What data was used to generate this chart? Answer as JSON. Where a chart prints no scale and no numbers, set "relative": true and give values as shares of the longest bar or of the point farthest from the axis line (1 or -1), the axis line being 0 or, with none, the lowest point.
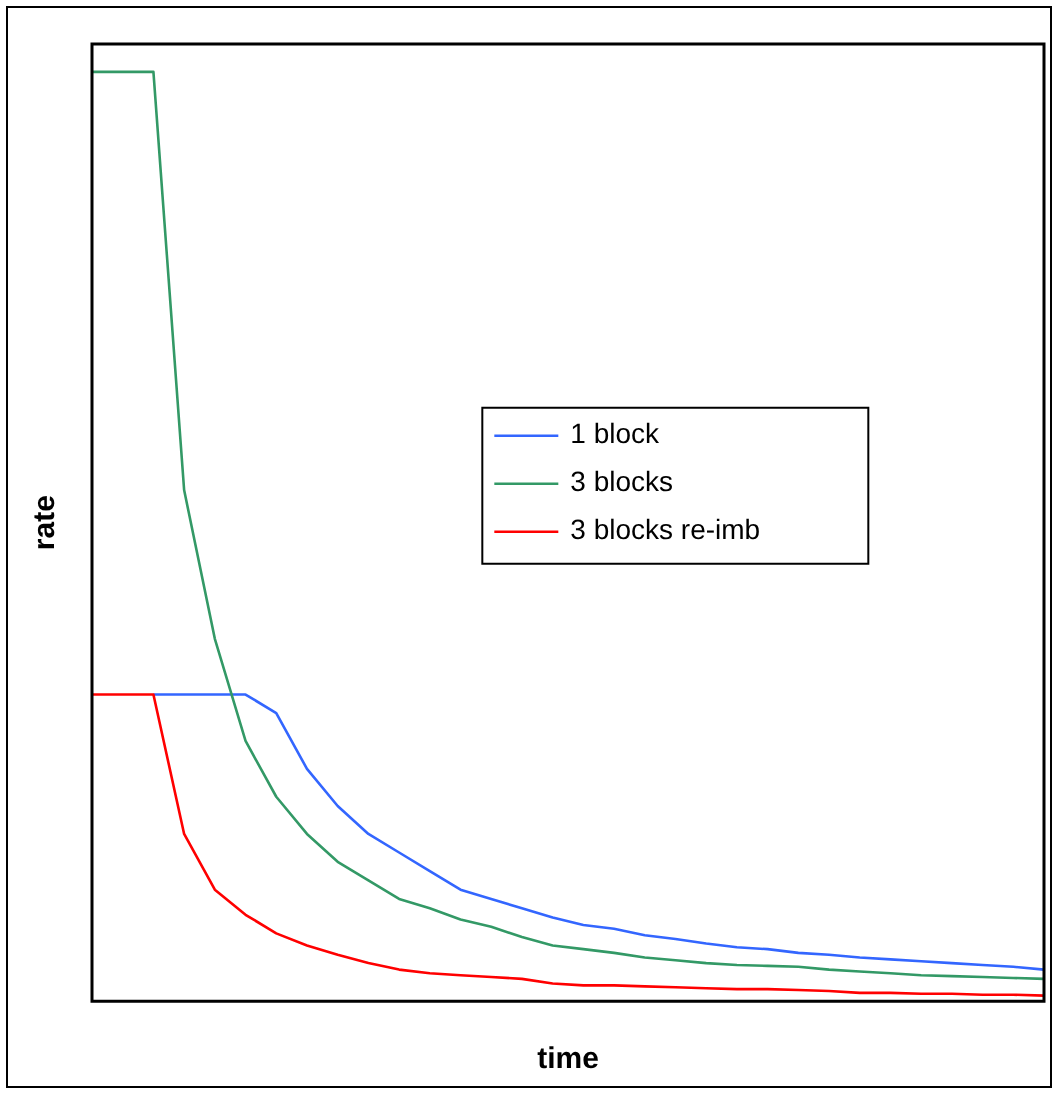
{
  "chart_data": {
    "type": "line",
    "relative": true,
    "xlabel": "time",
    "ylabel": "rate",
    "grid": false,
    "legend": "right",
    "marker": "none",
    "line_style": "solid",
    "categories": [
      null,
      null,
      null,
      null,
      null,
      null,
      null,
      null,
      null,
      null,
      null,
      null,
      null,
      null,
      null,
      null,
      null,
      null,
      null,
      null,
      null,
      null,
      null,
      null,
      null,
      null,
      null,
      null,
      null,
      null,
      null,
      null
    ],
    "series": [
      {
        "name": "1 block",
        "color": "#3366ff",
        "values": [
          null,
          null,
          0.33,
          0.33,
          0.33,
          0.33,
          0.31,
          0.25,
          0.21,
          0.18,
          0.16,
          0.14,
          0.12,
          0.11,
          0.1,
          0.09,
          0.082,
          0.078,
          0.071,
          0.067,
          0.062,
          0.058,
          0.056,
          0.052,
          0.05,
          0.047,
          0.045,
          0.043,
          0.041,
          0.039,
          0.037,
          0.034
        ]
      },
      {
        "name": "3 blocks",
        "color": "#339966",
        "values": [
          1,
          1,
          1,
          0.55,
          0.39,
          0.28,
          0.22,
          0.18,
          0.15,
          0.13,
          0.11,
          0.1,
          0.088,
          0.08,
          0.069,
          0.06,
          0.056,
          0.052,
          0.047,
          0.044,
          0.041,
          0.039,
          0.038,
          0.037,
          0.034,
          0.032,
          0.03,
          0.028,
          0.027,
          0.026,
          0.025,
          0.024
        ]
      },
      {
        "name": "3 blocks re-imb",
        "color": "#ff0000",
        "values": [
          0.33,
          0.33,
          0.33,
          0.18,
          0.12,
          0.093,
          0.073,
          0.06,
          0.05,
          0.041,
          0.034,
          0.03,
          0.028,
          0.026,
          0.024,
          0.019,
          0.017,
          0.017,
          0.016,
          0.015,
          0.014,
          0.013,
          0.013,
          0.012,
          0.011,
          0.009,
          0.009,
          0.008,
          0.008,
          0.007,
          0.007,
          0.006
        ]
      }
    ]
  }
}
